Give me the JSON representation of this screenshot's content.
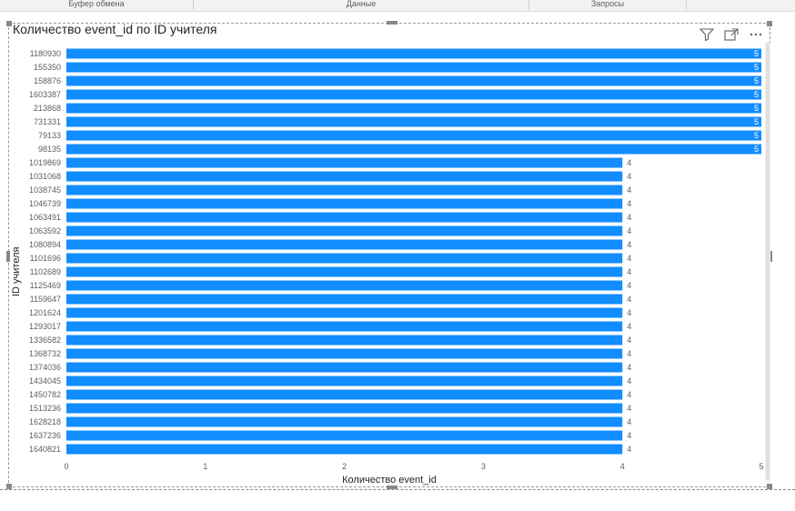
{
  "ribbon": {
    "groups": [
      "Буфер обмена",
      "Данные",
      "Запросы"
    ]
  },
  "visual": {
    "title": "Количество event_id по ID учителя",
    "icons": [
      "filter-icon",
      "focus-mode-icon",
      "more-options-icon"
    ]
  },
  "chart_data": {
    "type": "bar",
    "orientation": "horizontal",
    "title": "Количество event_id по ID учителя",
    "xlabel": "Количество event_id",
    "ylabel": "ID учителя",
    "xlim": [
      0,
      5
    ],
    "xticks": [
      "0",
      "1",
      "2",
      "3",
      "4",
      "5"
    ],
    "bar_color": "#118dff",
    "categories": [
      "1180930",
      "155350",
      "158876",
      "1603387",
      "213868",
      "731331",
      "79133",
      "98135",
      "1019869",
      "1031068",
      "1038745",
      "1046739",
      "1063491",
      "1063592",
      "1080894",
      "1101696",
      "1102689",
      "1125469",
      "1159647",
      "1201624",
      "1293017",
      "1336582",
      "1368732",
      "1374036",
      "1434045",
      "1450782",
      "1513236",
      "1628218",
      "1637236",
      "1640821"
    ],
    "values": [
      5,
      5,
      5,
      5,
      5,
      5,
      5,
      5,
      4,
      4,
      4,
      4,
      4,
      4,
      4,
      4,
      4,
      4,
      4,
      4,
      4,
      4,
      4,
      4,
      4,
      4,
      4,
      4,
      4,
      4
    ],
    "data_labels": [
      "5",
      "5",
      "5",
      "5",
      "5",
      "5",
      "5",
      "5",
      "4",
      "4",
      "4",
      "4",
      "4",
      "4",
      "4",
      "4",
      "4",
      "4",
      "4",
      "4",
      "4",
      "4",
      "4",
      "4",
      "4",
      "4",
      "4",
      "4",
      "4",
      "4"
    ],
    "grid": false
  }
}
